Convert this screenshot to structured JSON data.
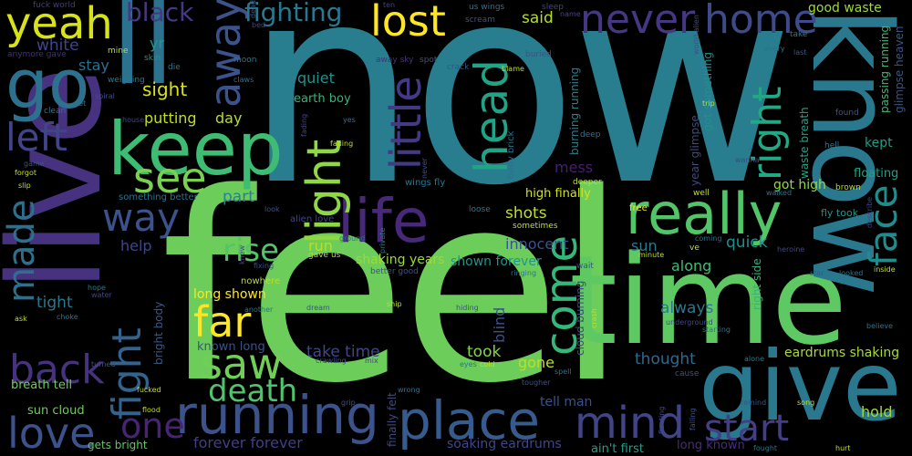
{
  "words": [
    {
      "text": "now",
      "color": "#287d8e"
    },
    {
      "text": "feel",
      "color": "#6ccd5a"
    },
    {
      "text": "time",
      "color": "#5ec962"
    },
    {
      "text": "know",
      "color": "#2a788e"
    },
    {
      "text": "give",
      "color": "#2a788e"
    },
    {
      "text": "live",
      "color": "#46327e"
    },
    {
      "text": "ll",
      "color": "#2c718e"
    },
    {
      "text": "keep",
      "color": "#3ebc73"
    },
    {
      "text": "go",
      "color": "#2c728e"
    },
    {
      "text": "life",
      "color": "#482878"
    },
    {
      "text": "running",
      "color": "#3b528b"
    },
    {
      "text": "place",
      "color": "#365c8d"
    },
    {
      "text": "really",
      "color": "#52c569"
    },
    {
      "text": "mind",
      "color": "#414487"
    },
    {
      "text": "lost",
      "color": "#fde725"
    },
    {
      "text": "never",
      "color": "#453781"
    },
    {
      "text": "home",
      "color": "#3e4a89"
    },
    {
      "text": "yeah",
      "color": "#d8e219"
    },
    {
      "text": "see",
      "color": "#7ad151"
    },
    {
      "text": "away",
      "color": "#3b528b"
    },
    {
      "text": "left",
      "color": "#414487"
    },
    {
      "text": "light",
      "color": "#8fd744"
    },
    {
      "text": "little",
      "color": "#443a83"
    },
    {
      "text": "head",
      "color": "#20a386"
    },
    {
      "text": "face",
      "color": "#228c8d"
    },
    {
      "text": "right",
      "color": "#22a884"
    },
    {
      "text": "come",
      "color": "#35b779"
    },
    {
      "text": "far",
      "color": "#fde725"
    },
    {
      "text": "fight",
      "color": "#33638d"
    },
    {
      "text": "way",
      "color": "#3b528b"
    },
    {
      "text": "saw",
      "color": "#70cf57"
    },
    {
      "text": "back",
      "color": "#46327e"
    },
    {
      "text": "made",
      "color": "#2d708e"
    },
    {
      "text": "start",
      "color": "#433e85"
    },
    {
      "text": "rise",
      "color": "#52c569"
    },
    {
      "text": "death",
      "color": "#50c46a"
    },
    {
      "text": "one",
      "color": "#482475"
    },
    {
      "text": "love",
      "color": "#3b528b"
    },
    {
      "text": "black",
      "color": "#443983"
    },
    {
      "text": "fighting",
      "color": "#2a788e"
    },
    {
      "text": "sight",
      "color": "#d8e219"
    },
    {
      "text": "white",
      "color": "#404688"
    },
    {
      "text": "yr",
      "color": "#1f988b"
    },
    {
      "text": "stay",
      "color": "#2d708e"
    },
    {
      "text": "quiet",
      "color": "#21918c"
    },
    {
      "text": "earth boy",
      "color": "#31b57b"
    },
    {
      "text": "putting",
      "color": "#c2df23"
    },
    {
      "text": "day",
      "color": "#b5de2b"
    },
    {
      "text": "said",
      "color": "#b5de2b"
    },
    {
      "text": "part",
      "color": "#26828e"
    },
    {
      "text": "help",
      "color": "#404688"
    },
    {
      "text": "run",
      "color": "#b8de29"
    },
    {
      "text": "shots",
      "color": "#bddf26"
    },
    {
      "text": "innocent",
      "color": "#3b528b"
    },
    {
      "text": "shaking years",
      "color": "#9bd93c"
    },
    {
      "text": "shown forever",
      "color": "#1f968b"
    },
    {
      "text": "quick",
      "color": "#21908d"
    },
    {
      "text": "sun",
      "color": "#2a788e"
    },
    {
      "text": "along",
      "color": "#3fbc73"
    },
    {
      "text": "always",
      "color": "#2a788e"
    },
    {
      "text": "tight",
      "color": "#2a788e"
    },
    {
      "text": "long shown",
      "color": "#fde725"
    },
    {
      "text": "take time",
      "color": "#404688"
    },
    {
      "text": "took",
      "color": "#86d549"
    },
    {
      "text": "gone",
      "color": "#bddf26"
    },
    {
      "text": "thought",
      "color": "#31688e"
    },
    {
      "text": "eardrums shaking",
      "color": "#a8db34"
    },
    {
      "text": "kept",
      "color": "#1f9e89"
    },
    {
      "text": "got high",
      "color": "#95d840"
    },
    {
      "text": "floating",
      "color": "#1fa187"
    },
    {
      "text": "fly took",
      "color": "#21918c"
    },
    {
      "text": "hold",
      "color": "#a0da39"
    },
    {
      "text": "tell man",
      "color": "#3b528b"
    },
    {
      "text": "ain't first",
      "color": "#1fa088"
    },
    {
      "text": "long known",
      "color": "#472d7b"
    },
    {
      "text": "soaking eardrums",
      "color": "#404688"
    },
    {
      "text": "forever forever",
      "color": "#433e85"
    },
    {
      "text": "gets bright",
      "color": "#5ec962"
    },
    {
      "text": "sun cloud",
      "color": "#6ccd5a"
    },
    {
      "text": "breath tell",
      "color": "#6ccd5a"
    },
    {
      "text": "known long",
      "color": "#3b528b"
    },
    {
      "text": "high finally",
      "color": "#d2e21b"
    },
    {
      "text": "mess",
      "color": "#481f70"
    },
    {
      "text": "good waste",
      "color": "#9bd93c"
    },
    {
      "text": "passing running",
      "color": "#3fbc73"
    },
    {
      "text": "glimpse heaven",
      "color": "#39568c"
    },
    {
      "text": "burning running",
      "color": "#26828e"
    },
    {
      "text": "year glimpse",
      "color": "#3e4a89"
    },
    {
      "text": "got something",
      "color": "#21918c"
    },
    {
      "text": "waste breath",
      "color": "#20a486"
    },
    {
      "text": "right side",
      "color": "#31b57b"
    },
    {
      "text": "bright body",
      "color": "#38598c"
    },
    {
      "text": "cloud burning",
      "color": "#404688"
    },
    {
      "text": "finally felt",
      "color": "#3e4a89"
    },
    {
      "text": "blind",
      "color": "#3b528b"
    },
    {
      "text": "body brick",
      "color": "#2c728e"
    },
    {
      "text": "wings fly",
      "color": "#2a788e"
    },
    {
      "text": "something better",
      "color": "#2c728e"
    },
    {
      "text": "alien love",
      "color": "#404688"
    },
    {
      "text": "nowhere",
      "color": "#b5de2b"
    },
    {
      "text": "fuck world",
      "color": "#443a83"
    },
    {
      "text": "anymore gave",
      "color": "#472d7b"
    },
    {
      "text": "mine",
      "color": "#b5de2b"
    },
    {
      "text": "weighing",
      "color": "#2a788e"
    },
    {
      "text": "skin",
      "color": "#1f988b"
    },
    {
      "text": "die",
      "color": "#2c728e"
    },
    {
      "text": "moon",
      "color": "#2a788e"
    },
    {
      "text": "clean",
      "color": "#2a788e"
    },
    {
      "text": "let",
      "color": "#2a788e"
    },
    {
      "text": "spiral",
      "color": "#3b528b"
    },
    {
      "text": "us wings",
      "color": "#2c728e"
    },
    {
      "text": "scream",
      "color": "#3b528b"
    },
    {
      "text": "away sky",
      "color": "#46327e"
    },
    {
      "text": "crack",
      "color": "#3b528b"
    },
    {
      "text": "buried",
      "color": "#3b528b"
    },
    {
      "text": "deep",
      "color": "#2c728e"
    },
    {
      "text": "deeper",
      "color": "#c2df23"
    },
    {
      "text": "spot",
      "color": "#3b528b"
    },
    {
      "text": "sleep",
      "color": "#404688"
    },
    {
      "text": "name",
      "color": "#404688"
    },
    {
      "text": "world alien",
      "color": "#3b528b"
    },
    {
      "text": "trip",
      "color": "#c2df23"
    },
    {
      "text": "take",
      "color": "#2a788e"
    },
    {
      "text": "last",
      "color": "#3b528b"
    },
    {
      "text": "every",
      "color": "#2c728e"
    },
    {
      "text": "hell",
      "color": "#2a788e"
    },
    {
      "text": "found",
      "color": "#3b528b"
    },
    {
      "text": "brown",
      "color": "#b5de2b"
    },
    {
      "text": "wanna",
      "color": "#404688"
    },
    {
      "text": "describe",
      "color": "#404688"
    },
    {
      "text": "walked",
      "color": "#2c728e"
    },
    {
      "text": "well",
      "color": "#c2df23"
    },
    {
      "text": "free",
      "color": "#fde725"
    },
    {
      "text": "loose",
      "color": "#2a788e"
    },
    {
      "text": "sometimes",
      "color": "#c2df23"
    },
    {
      "text": "ground",
      "color": "#2c728e"
    },
    {
      "text": "private",
      "color": "#2a788e"
    },
    {
      "text": "better good",
      "color": "#3b528b"
    },
    {
      "text": "gave us",
      "color": "#b5de2b"
    },
    {
      "text": "fixing",
      "color": "#3b528b"
    },
    {
      "text": "knew",
      "color": "#404688"
    },
    {
      "text": "ringing",
      "color": "#2c728e"
    },
    {
      "text": "wait",
      "color": "#3b528b"
    },
    {
      "text": "minute",
      "color": "#c2df23"
    },
    {
      "text": "ve",
      "color": "#c2df23"
    },
    {
      "text": "coming",
      "color": "#2c728e"
    },
    {
      "text": "heroine",
      "color": "#404688"
    },
    {
      "text": "star",
      "color": "#3b528b"
    },
    {
      "text": "looked",
      "color": "#2c728e"
    },
    {
      "text": "inside",
      "color": "#c2df23"
    },
    {
      "text": "believe",
      "color": "#2a788e"
    },
    {
      "text": "hiding",
      "color": "#3b528b"
    },
    {
      "text": "ship",
      "color": "#c2df23"
    },
    {
      "text": "dream",
      "color": "#3b528b"
    },
    {
      "text": "another",
      "color": "#2c728e"
    },
    {
      "text": "crawling",
      "color": "#3b528b"
    },
    {
      "text": "mix",
      "color": "#404688"
    },
    {
      "text": "eyes",
      "color": "#2c728e"
    },
    {
      "text": "cold",
      "color": "#c2df23"
    },
    {
      "text": "spell",
      "color": "#2c728e"
    },
    {
      "text": "tougher",
      "color": "#3b528b"
    },
    {
      "text": "crash",
      "color": "#c2df23"
    },
    {
      "text": "underground",
      "color": "#404688"
    },
    {
      "text": "starting",
      "color": "#2c728e"
    },
    {
      "text": "alone",
      "color": "#2a788e"
    },
    {
      "text": "cause",
      "color": "#3b528b"
    },
    {
      "text": "remind",
      "color": "#3b528b"
    },
    {
      "text": "song",
      "color": "#c2df23"
    },
    {
      "text": "hurt",
      "color": "#c2df23"
    },
    {
      "text": "fought",
      "color": "#2c728e"
    },
    {
      "text": "falling",
      "color": "#3b528b"
    },
    {
      "text": "fleeting",
      "color": "#404688"
    },
    {
      "text": "wrong",
      "color": "#2c728e"
    },
    {
      "text": "grip",
      "color": "#3b528b"
    },
    {
      "text": "flood",
      "color": "#c2df23"
    },
    {
      "text": "fucked",
      "color": "#c2df23"
    },
    {
      "text": "turned",
      "color": "#3b528b"
    },
    {
      "text": "choke",
      "color": "#2c728e"
    },
    {
      "text": "ask",
      "color": "#c2df23"
    },
    {
      "text": "hope",
      "color": "#2a788e"
    },
    {
      "text": "water",
      "color": "#404688"
    },
    {
      "text": "look",
      "color": "#3b528b"
    },
    {
      "text": "house",
      "color": "#404688"
    },
    {
      "text": "game",
      "color": "#3b528b"
    },
    {
      "text": "forgot",
      "color": "#c2df23"
    },
    {
      "text": "slip",
      "color": "#c2df23"
    },
    {
      "text": "claws",
      "color": "#2c728e"
    },
    {
      "text": "bed",
      "color": "#404688"
    },
    {
      "text": "dead",
      "color": "#3b528b"
    },
    {
      "text": "fading",
      "color": "#404688"
    },
    {
      "text": "never",
      "color": "#c2df23"
    },
    {
      "text": "blame",
      "color": "#3b528b"
    },
    {
      "text": "yes",
      "color": "#c2df23"
    },
    {
      "text": "ten",
      "color": "#2c728e"
    },
    {
      "text": "caring",
      "color": "#404688"
    }
  ]
}
